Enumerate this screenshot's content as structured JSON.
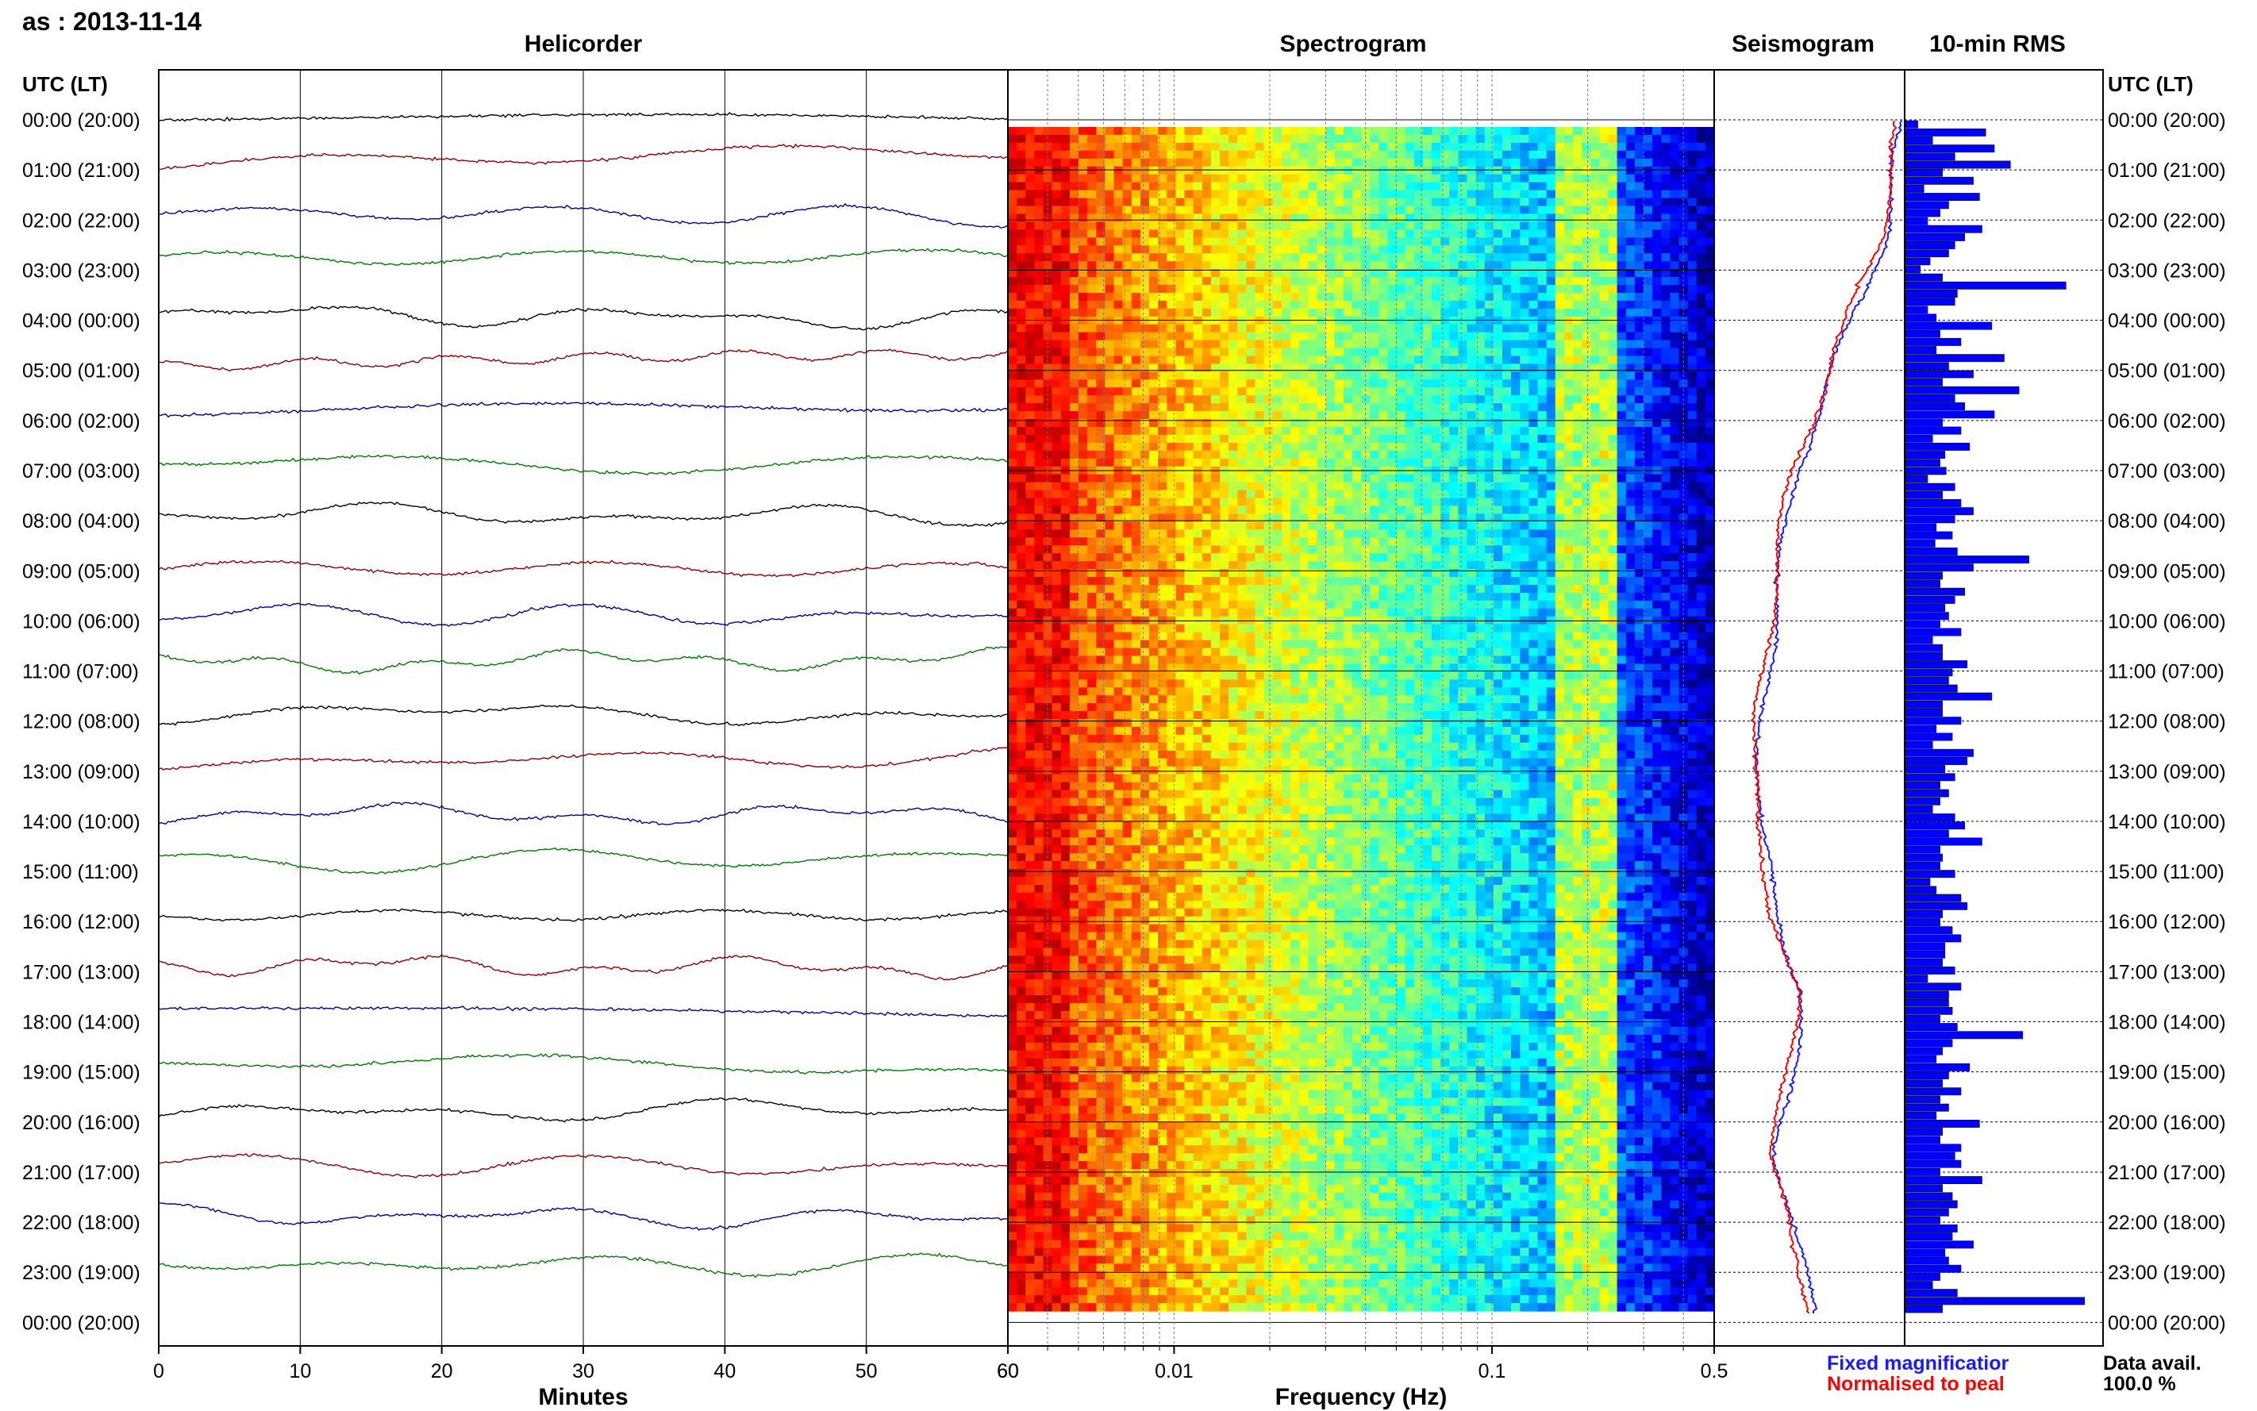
{
  "window_title": "as : 2013-11-14",
  "panels": {
    "helicorder": "Helicorder",
    "spectrogram": "Spectrogram",
    "seismogram": "Seismogram",
    "rms": "10-min RMS"
  },
  "time_axis_title": "UTC (LT)",
  "x_axis_titles": {
    "helicorder": "Minutes",
    "spectrogram": "Frequency (Hz)"
  },
  "legend": {
    "fixed": "Fixed magnificatior",
    "normalised": "Normalised to peal",
    "fixed_color": "#1a1aff",
    "normalised_color": "#ff0000"
  },
  "data_avail_label": "Data avail.",
  "data_avail_value": "100.0 %",
  "chart_data": [
    {
      "type": "line",
      "panel": "helicorder",
      "title": "Helicorder",
      "xlabel": "Minutes",
      "xlim": [
        0,
        60
      ],
      "x_ticks": [
        "0",
        "10",
        "20",
        "30",
        "40",
        "50",
        "60"
      ],
      "row_labels": [
        "00:00 (20:00)",
        "01:00 (21:00)",
        "02:00 (22:00)",
        "03:00 (23:00)",
        "04:00 (00:00)",
        "05:00 (01:00)",
        "06:00 (02:00)",
        "07:00 (03:00)",
        "08:00 (04:00)",
        "09:00 (05:00)",
        "10:00 (06:00)",
        "11:00 (07:00)",
        "12:00 (08:00)",
        "13:00 (09:00)",
        "14:00 (10:00)",
        "15:00 (11:00)",
        "16:00 (12:00)",
        "17:00 (13:00)",
        "18:00 (14:00)",
        "19:00 (15:00)",
        "20:00 (16:00)",
        "21:00 (17:00)",
        "22:00 (18:00)",
        "23:00 (19:00)",
        "00:00 (20:00)"
      ],
      "trace_colors": [
        "#000000",
        "#8b0000",
        "#00008b",
        "#007a00"
      ]
    },
    {
      "type": "heatmap",
      "panel": "spectrogram",
      "title": "Spectrogram",
      "xlabel": "Frequency (Hz)",
      "x_scale": "log",
      "xlim": [
        0.003,
        0.5
      ],
      "x_ticks": [
        "0.01",
        "0.1",
        "0.5"
      ],
      "colormap": "jet"
    },
    {
      "type": "line",
      "panel": "seismogram",
      "title": "Seismogram",
      "series": [
        {
          "name": "Fixed magnificatior",
          "color": "#1a1aff"
        },
        {
          "name": "Normalised to peal",
          "color": "#ff0000"
        }
      ]
    },
    {
      "type": "bar",
      "panel": "rms",
      "title": "10-min RMS",
      "orientation": "horizontal",
      "color": "#0000ff",
      "values": [
        0.1,
        0.65,
        0.22,
        0.72,
        0.4,
        0.85,
        0.3,
        0.55,
        0.15,
        0.6,
        0.35,
        0.28,
        0.18,
        0.62,
        0.48,
        0.4,
        0.35,
        0.2,
        0.12,
        0.3,
        1.3,
        0.42,
        0.4,
        0.18,
        0.25,
        0.7,
        0.28,
        0.45,
        0.25,
        0.8,
        0.35,
        0.55,
        0.3,
        0.92,
        0.4,
        0.48,
        0.72,
        0.3,
        0.45,
        0.22,
        0.52,
        0.32,
        0.28,
        0.33,
        0.18,
        0.4,
        0.3,
        0.45,
        0.55,
        0.4,
        0.25,
        0.38,
        0.24,
        0.42,
        1.0,
        0.55,
        0.3,
        0.28,
        0.48,
        0.4,
        0.32,
        0.35,
        0.28,
        0.45,
        0.22,
        0.3,
        0.3,
        0.5,
        0.38,
        0.35,
        0.42,
        0.7,
        0.3,
        0.3,
        0.45,
        0.25,
        0.38,
        0.22,
        0.55,
        0.5,
        0.32,
        0.4,
        0.28,
        0.35,
        0.28,
        0.22,
        0.4,
        0.48,
        0.35,
        0.62,
        0.28,
        0.3,
        0.28,
        0.4,
        0.2,
        0.25,
        0.45,
        0.5,
        0.3,
        0.28,
        0.38,
        0.45,
        0.32,
        0.32,
        0.3,
        0.4,
        0.18,
        0.45,
        0.35,
        0.35,
        0.38,
        0.28,
        0.42,
        0.95,
        0.38,
        0.3,
        0.25,
        0.52,
        0.35,
        0.3,
        0.45,
        0.28,
        0.35,
        0.25,
        0.6,
        0.3,
        0.28,
        0.45,
        0.4,
        0.45,
        0.28,
        0.62,
        0.3,
        0.38,
        0.42,
        0.35,
        0.28,
        0.42,
        0.38,
        0.55,
        0.32,
        0.35,
        0.45,
        0.28,
        0.22,
        0.42,
        1.45,
        0.3
      ]
    }
  ]
}
